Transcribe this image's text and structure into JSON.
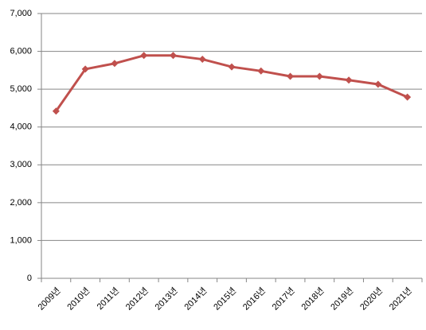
{
  "chart_data": {
    "type": "line",
    "categories": [
      "2009년",
      "2010년",
      "2011년",
      "2012년",
      "2013년",
      "2014년",
      "2015년",
      "2016년",
      "2017년",
      "2018년",
      "2019년",
      "2020년",
      "2021년"
    ],
    "series": [
      {
        "color": "#c0504d",
        "values": [
          4420,
          5530,
          5680,
          5890,
          5890,
          5790,
          5590,
          5480,
          5340,
          5340,
          5240,
          5130,
          4790
        ]
      }
    ],
    "ylim": [
      0,
      7000
    ],
    "yticks": [
      0,
      {
        "value": 1000,
        "label": "1,000"
      },
      {
        "value": 2000,
        "label": "2,000"
      },
      {
        "value": 3000,
        "label": "3,000"
      },
      {
        "value": 4000,
        "label": "4,000"
      },
      {
        "value": 5000,
        "label": "5,000"
      },
      {
        "value": 6000,
        "label": "6,000"
      },
      {
        "value": 7000,
        "label": "7,000"
      }
    ],
    "grid": true
  }
}
